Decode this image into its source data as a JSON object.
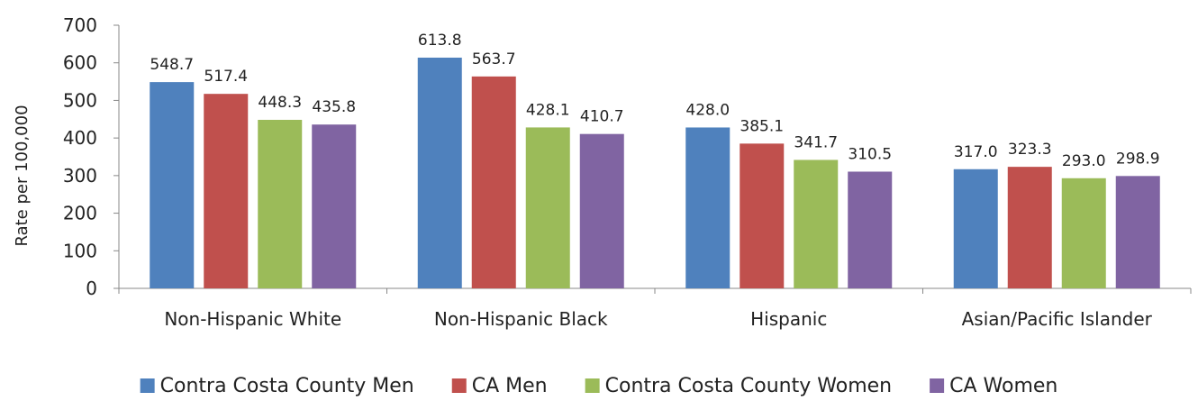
{
  "chart_data": {
    "type": "bar",
    "title": "",
    "xlabel": "",
    "ylabel": "Rate per 100,000",
    "ylim": [
      0,
      700
    ],
    "yticks": [
      0,
      100,
      200,
      300,
      400,
      500,
      600,
      700
    ],
    "grid": false,
    "legend_position": "bottom",
    "categories": [
      "Non-Hispanic White",
      "Non-Hispanic Black",
      "Hispanic",
      "Asian/Pacific Islander"
    ],
    "series": [
      {
        "name": "Contra Costa County Men",
        "color": "#4f81bd",
        "values": [
          548.7,
          613.8,
          428.0,
          317.0
        ],
        "labels": [
          "548.7",
          "613.8",
          "428.0",
          "317.0"
        ]
      },
      {
        "name": "CA Men",
        "color": "#c0504d",
        "values": [
          517.4,
          563.7,
          385.1,
          323.3
        ],
        "labels": [
          "517.4",
          "563.7",
          "385.1",
          "323.3"
        ]
      },
      {
        "name": "Contra Costa County Women",
        "color": "#9bbb59",
        "values": [
          448.3,
          428.1,
          341.7,
          293.0
        ],
        "labels": [
          "448.3",
          "428.1",
          "341.7",
          "293.0"
        ]
      },
      {
        "name": "CA Women",
        "color": "#8064a2",
        "values": [
          435.8,
          410.7,
          310.5,
          298.9
        ],
        "labels": [
          "435.8",
          "410.7",
          "310.5",
          "298.9"
        ]
      }
    ]
  }
}
